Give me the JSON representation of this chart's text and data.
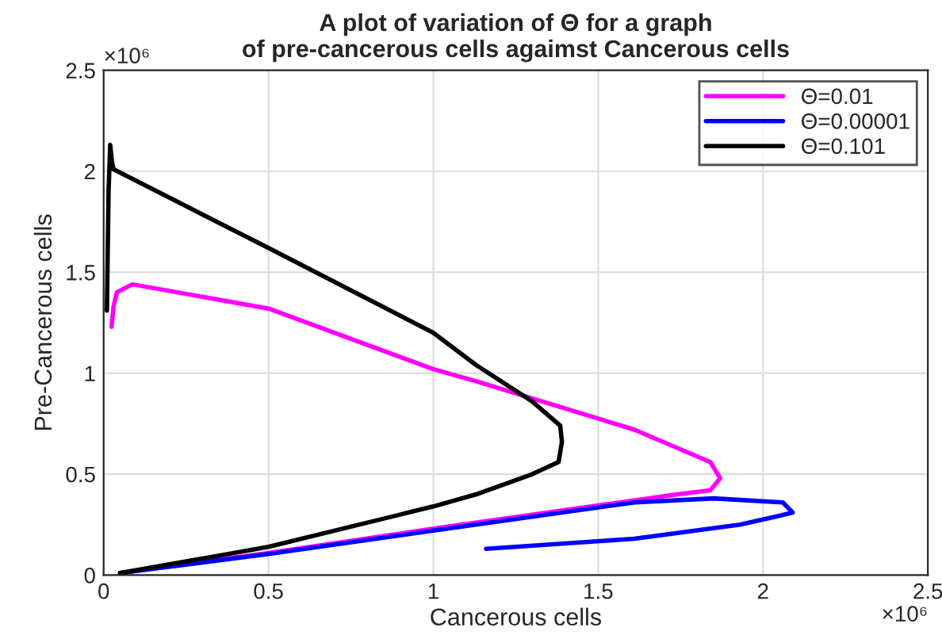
{
  "chart_data": {
    "type": "line",
    "title": "A plot of variation of Θ for a graph\nof pre-cancerous cells agaimst Cancerous cells",
    "xlabel": "Cancerous cells",
    "ylabel": "Pre-Cancerous cells",
    "annotations": [
      "×10⁶",
      "×10⁶"
    ],
    "xlim": [
      0,
      2.5
    ],
    "ylim": [
      0,
      2.5
    ],
    "xticks": [
      0,
      0.5,
      1,
      1.5,
      2,
      2.5
    ],
    "yticks": [
      0,
      0.5,
      1,
      1.5,
      2,
      2.5
    ],
    "grid": true,
    "legend": "top right",
    "line_style": "solid",
    "marker": "none",
    "series": [
      {
        "name": "Θ=0.01",
        "color": "#ff00ff",
        "x": [
          0.024,
          0.03,
          0.04,
          0.087,
          0.5,
          1.0,
          1.13,
          1.23,
          1.61,
          1.84,
          1.87,
          1.84,
          1.74,
          1.5,
          1.0,
          0.5,
          0.05
        ],
        "values": [
          1.23,
          1.33,
          1.4,
          1.44,
          1.32,
          1.02,
          0.96,
          0.91,
          0.72,
          0.56,
          0.48,
          0.42,
          0.4,
          0.345,
          0.23,
          0.11,
          0.01
        ]
      },
      {
        "name": "Θ=0.00001",
        "color": "#0000ff",
        "x": [
          1.16,
          1.61,
          1.93,
          2.04,
          2.09,
          2.06,
          1.85,
          1.61,
          1.0,
          0.5,
          0.05
        ],
        "values": [
          0.13,
          0.18,
          0.25,
          0.29,
          0.31,
          0.36,
          0.38,
          0.36,
          0.22,
          0.105,
          0.01
        ]
      },
      {
        "name": "Θ=0.101",
        "color": "#000000",
        "x": [
          0.01,
          0.015,
          0.02,
          0.025,
          0.03,
          0.5,
          1.0,
          1.13,
          1.3,
          1.385,
          1.39,
          1.38,
          1.3,
          1.13,
          1.0,
          0.5,
          0.05
        ],
        "values": [
          1.31,
          1.9,
          2.13,
          2.05,
          2.01,
          1.62,
          1.2,
          1.04,
          0.86,
          0.74,
          0.66,
          0.56,
          0.5,
          0.4,
          0.34,
          0.14,
          0.01
        ]
      }
    ]
  }
}
